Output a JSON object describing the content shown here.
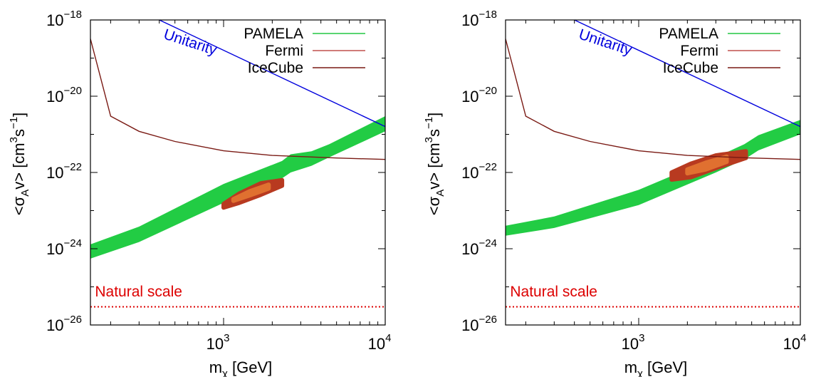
{
  "chart_data": [
    {
      "type": "line",
      "xlabel": "m",
      "xlabel_sub": "χ",
      "xlabel_unit": " [GeV]",
      "ylabel": "<σ",
      "ylabel_sub": "A",
      "ylabel_rest": "v> [cm",
      "ylabel_sup1": "3",
      "ylabel_mid": "s",
      "ylabel_sup2": "−1",
      "ylabel_end": "]",
      "xscale": "log",
      "yscale": "log",
      "xlim": [
        150,
        10000
      ],
      "ylim": [
        1e-26,
        1e-18
      ],
      "xticks": [
        {
          "value": 1000,
          "base": "10",
          "exp": "3"
        },
        {
          "value": 10000,
          "base": "10",
          "exp": "4"
        }
      ],
      "yticks": [
        {
          "value": 1e-26,
          "base": "10",
          "exp": "−26"
        },
        {
          "value": 1e-24,
          "base": "10",
          "exp": "−24"
        },
        {
          "value": 1e-22,
          "base": "10",
          "exp": "−22"
        },
        {
          "value": 1e-20,
          "base": "10",
          "exp": "−20"
        },
        {
          "value": 1e-18,
          "base": "10",
          "exp": "−18"
        }
      ],
      "legend": {
        "position": "top-right",
        "entries": [
          {
            "name": "PAMELA",
            "color": "#22c744"
          },
          {
            "name": "Fermi",
            "color": "#c0504d"
          },
          {
            "name": "IceCube",
            "color": "#7a1a14"
          }
        ]
      },
      "series": [
        {
          "name": "Fermi",
          "color": "#7a1a14",
          "x": [
            150,
            200,
            300,
            500,
            1000,
            2000,
            5000,
            10000
          ],
          "y": [
            3.2e-19,
            3e-21,
            1.2e-21,
            6.5e-22,
            3.7e-22,
            2.8e-22,
            2.4e-22,
            2.2e-22
          ]
        },
        {
          "name": "Unitarity",
          "color": "#0000dd",
          "x": [
            400,
            10000
          ],
          "y": [
            1e-18,
            1.6e-21
          ]
        }
      ],
      "pamela_band": {
        "color": "#22cc44",
        "x": [
          150,
          300,
          1000,
          2300,
          2600,
          3500,
          4500,
          10000
        ],
        "upper": [
          1.3e-24,
          3.8e-24,
          5e-23,
          2e-22,
          3e-22,
          3.6e-22,
          5.5e-22,
          3e-21
        ],
        "lower": [
          5.5e-25,
          1.5e-24,
          1.6e-23,
          7e-23,
          1e-22,
          1.5e-22,
          2.5e-22,
          1.2e-21
        ]
      },
      "fit_region": {
        "outer_color": "#b83a20",
        "inner_color": "#e07030",
        "outer": {
          "x": [
            1000,
            1250,
            1700,
            2300,
            2300,
            1700,
            1250,
            1000
          ],
          "y": [
            1.5e-23,
            2.8e-23,
            5.2e-23,
            6.3e-23,
            4.5e-23,
            2.6e-23,
            1.6e-23,
            1.2e-23
          ]
        },
        "inner": {
          "x": [
            1150,
            1450,
            1900,
            1900,
            1450,
            1150
          ],
          "y": [
            2e-23,
            3.2e-23,
            4.8e-23,
            3.8e-23,
            2.5e-23,
            1.8e-23
          ]
        }
      },
      "annotations": [
        {
          "text": "Unitarity",
          "color": "#0000dd",
          "x": 420,
          "y": 3.3e-19,
          "angle": 18
        },
        {
          "text": "Natural scale",
          "color": "#dd0000",
          "x": 160,
          "y": 5.6e-26
        }
      ],
      "natural_scale_y": 3e-26
    },
    {
      "type": "line",
      "xlabel": "m",
      "xlabel_sub": "χ",
      "xlabel_unit": " [GeV]",
      "ylabel": "<σ",
      "ylabel_sub": "A",
      "ylabel_rest": "v> [cm",
      "ylabel_sup1": "3",
      "ylabel_mid": "s",
      "ylabel_sup2": "−1",
      "ylabel_end": "]",
      "xscale": "log",
      "yscale": "log",
      "xlim": [
        150,
        10000
      ],
      "ylim": [
        1e-26,
        1e-18
      ],
      "xticks": [
        {
          "value": 1000,
          "base": "10",
          "exp": "3"
        },
        {
          "value": 10000,
          "base": "10",
          "exp": "4"
        }
      ],
      "yticks": [
        {
          "value": 1e-26,
          "base": "10",
          "exp": "−26"
        },
        {
          "value": 1e-24,
          "base": "10",
          "exp": "−24"
        },
        {
          "value": 1e-22,
          "base": "10",
          "exp": "−22"
        },
        {
          "value": 1e-20,
          "base": "10",
          "exp": "−20"
        },
        {
          "value": 1e-18,
          "base": "10",
          "exp": "−18"
        }
      ],
      "legend": {
        "position": "top-right",
        "entries": [
          {
            "name": "PAMELA",
            "color": "#22c744"
          },
          {
            "name": "Fermi",
            "color": "#c0504d"
          },
          {
            "name": "IceCube",
            "color": "#7a1a14"
          }
        ]
      },
      "series": [
        {
          "name": "Fermi",
          "color": "#7a1a14",
          "x": [
            150,
            200,
            300,
            500,
            1000,
            2000,
            5000,
            10000
          ],
          "y": [
            3.2e-19,
            3e-21,
            1.2e-21,
            6.5e-22,
            3.7e-22,
            2.8e-22,
            2.4e-22,
            2.2e-22
          ]
        },
        {
          "name": "Unitarity",
          "color": "#0000dd",
          "x": [
            400,
            10000
          ],
          "y": [
            1e-18,
            1.6e-21
          ]
        }
      ],
      "pamela_band": {
        "color": "#22cc44",
        "x": [
          150,
          300,
          1000,
          3000,
          4500,
          5500,
          10000
        ],
        "upper": [
          4e-24,
          7e-24,
          3.5e-23,
          2.5e-22,
          5.5e-22,
          9.5e-22,
          2.4e-21
        ],
        "lower": [
          2.2e-24,
          3.5e-24,
          1.4e-23,
          1e-22,
          2.2e-22,
          3.8e-22,
          1e-21
        ]
      },
      "fit_region": {
        "outer_color": "#b83a20",
        "inner_color": "#e07030",
        "outer": {
          "x": [
            1600,
            2100,
            3000,
            4600,
            4600,
            3000,
            2100,
            1600
          ],
          "y": [
            1e-22,
            1.7e-22,
            2.8e-22,
            3.6e-22,
            2.4e-22,
            1.3e-22,
            7.5e-23,
            6.5e-23
          ]
        },
        "inner": {
          "x": [
            2000,
            2600,
            3500,
            3500,
            2600,
            2000
          ],
          "y": [
            1.2e-22,
            1.8e-22,
            2.6e-22,
            1.9e-22,
            1.2e-22,
            9.5e-23
          ]
        }
      },
      "annotations": [
        {
          "text": "Unitarity",
          "color": "#0000dd",
          "x": 420,
          "y": 3.3e-19,
          "angle": 18
        },
        {
          "text": "Natural scale",
          "color": "#dd0000",
          "x": 160,
          "y": 5.6e-26
        }
      ],
      "natural_scale_y": 3e-26
    }
  ]
}
